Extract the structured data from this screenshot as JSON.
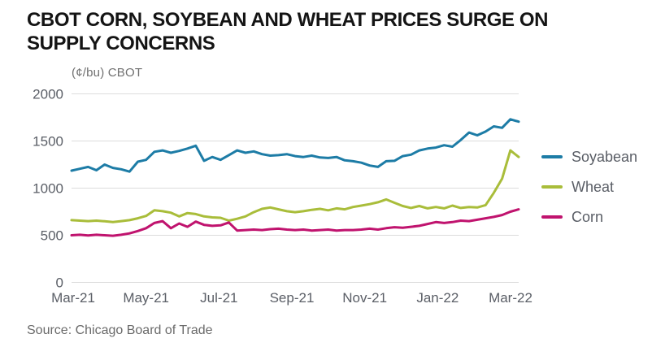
{
  "title": "CBOT CORN, SOYBEAN AND WHEAT PRICES SURGE ON SUPPLY CONCERNS",
  "unit_label": "(¢/bu) CBOT",
  "source": "Source: Chicago Board of Trade",
  "colors": {
    "soyabean_line": "#1d7ca6",
    "wheat_line": "#a9bd3a",
    "corn_line": "#c0136e",
    "grid": "#dcdcdc",
    "tick_text": "#5a5e66",
    "title_text": "#141414"
  },
  "chart_data": {
    "type": "line",
    "title": "CBOT CORN, SOYBEAN AND WHEAT PRICES SURGE ON SUPPLY CONCERNS",
    "ylabel": "(¢/bu) CBOT",
    "xlabel": "",
    "x_range": [
      "Mar-21",
      "Mar-22"
    ],
    "x_tick_labels": [
      "Mar-21",
      "May-21",
      "Jul-21",
      "Sep-21",
      "Nov-21",
      "Jan-22",
      "Mar-22"
    ],
    "y_ticks": [
      0,
      500,
      1000,
      1500,
      2000
    ],
    "ylim": [
      0,
      2000
    ],
    "grid": "horizontal",
    "legend_position": "right",
    "sampling": "weekly, Mar-2021 to mid-Mar-2022 (55 points per series)",
    "series": [
      {
        "name": "Soyabean",
        "color": "#1d7ca6",
        "values": [
          1185,
          1205,
          1225,
          1190,
          1250,
          1215,
          1200,
          1175,
          1280,
          1300,
          1385,
          1400,
          1375,
          1395,
          1420,
          1450,
          1290,
          1330,
          1300,
          1350,
          1400,
          1375,
          1390,
          1360,
          1345,
          1350,
          1360,
          1340,
          1330,
          1345,
          1325,
          1320,
          1330,
          1295,
          1285,
          1270,
          1240,
          1225,
          1285,
          1290,
          1340,
          1355,
          1400,
          1420,
          1430,
          1455,
          1440,
          1510,
          1590,
          1560,
          1600,
          1655,
          1640,
          1730,
          1705
        ]
      },
      {
        "name": "Wheat",
        "color": "#a9bd3a",
        "values": [
          660,
          655,
          650,
          655,
          648,
          640,
          650,
          660,
          680,
          705,
          765,
          755,
          740,
          700,
          735,
          725,
          700,
          690,
          685,
          655,
          675,
          700,
          745,
          780,
          795,
          775,
          755,
          745,
          755,
          770,
          780,
          765,
          785,
          775,
          800,
          815,
          830,
          850,
          880,
          845,
          810,
          790,
          810,
          785,
          800,
          785,
          815,
          790,
          800,
          795,
          820,
          950,
          1100,
          1400,
          1330
        ]
      },
      {
        "name": "Corn",
        "color": "#c0136e",
        "values": [
          500,
          505,
          498,
          505,
          500,
          495,
          505,
          520,
          545,
          575,
          630,
          650,
          575,
          625,
          590,
          645,
          610,
          600,
          605,
          635,
          550,
          555,
          560,
          555,
          565,
          570,
          560,
          555,
          560,
          550,
          555,
          560,
          550,
          555,
          555,
          560,
          570,
          560,
          575,
          585,
          580,
          590,
          600,
          620,
          640,
          630,
          640,
          655,
          650,
          665,
          680,
          695,
          715,
          750,
          775
        ]
      }
    ]
  }
}
